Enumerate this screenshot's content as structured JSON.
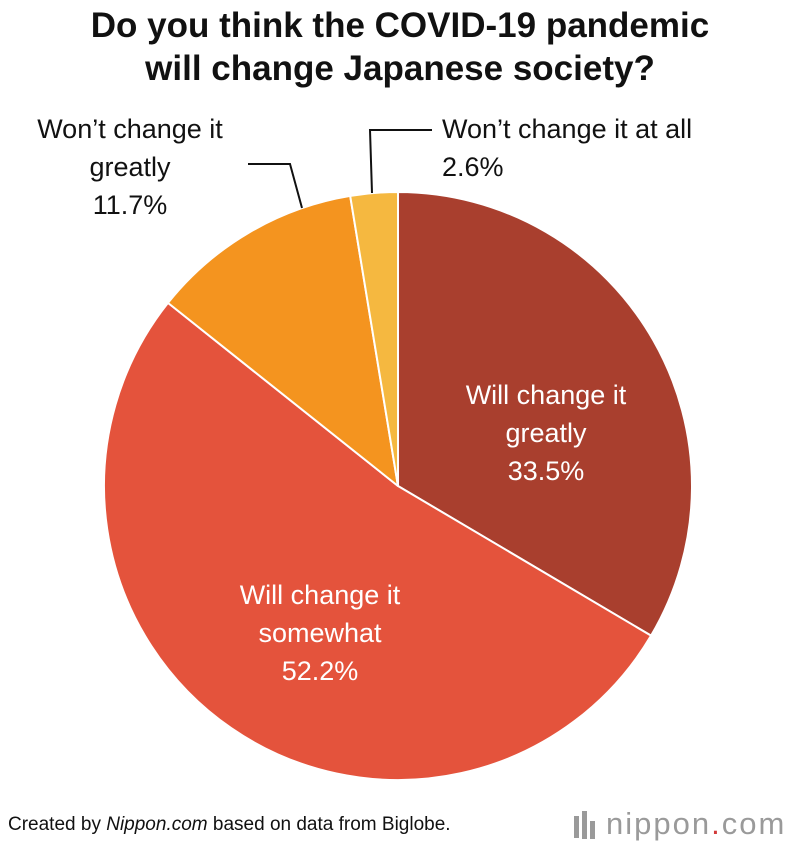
{
  "title": {
    "line1": "Do you think the COVID-19 pandemic",
    "line2": "will change Japanese society?"
  },
  "chart_data": {
    "type": "pie",
    "title": "Do you think the COVID-19 pandemic will change Japanese society?",
    "slices": [
      {
        "label_lines": [
          "Will change it",
          "greatly"
        ],
        "value": 33.5,
        "value_label": "33.5%",
        "color": "#a93f2e"
      },
      {
        "label_lines": [
          "Will change it",
          "somewhat"
        ],
        "value": 52.2,
        "value_label": "52.2%",
        "color": "#e4533c"
      },
      {
        "label_lines": [
          "Won’t change it",
          "greatly"
        ],
        "value": 11.7,
        "value_label": "11.7%",
        "color": "#f4941f"
      },
      {
        "label_lines": [
          "Won’t change it at all"
        ],
        "value": 2.6,
        "value_label": "2.6%",
        "color": "#f5b840"
      }
    ],
    "start_angle": "12 o'clock",
    "direction": "clockwise"
  },
  "footer": {
    "prefix": "Created by ",
    "source_name": "Nippon.com",
    "suffix": " based on data from Biglobe."
  },
  "logo": {
    "word": "nippon",
    "dot": ".",
    "tld": "com"
  }
}
